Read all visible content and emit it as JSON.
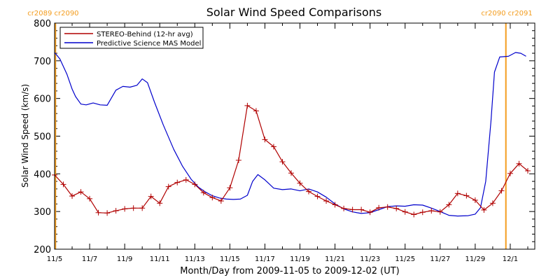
{
  "chart_data": {
    "type": "line",
    "title": "Solar Wind Speed Comparisons",
    "xlabel": "Month/Day from 2009-11-05 to 2009-12-02 (UT)",
    "ylabel": "Solar Wind Speed (km/s)",
    "xlim_days": [
      0,
      27.4
    ],
    "ylim": [
      200,
      800
    ],
    "x_ticks": [
      {
        "day": 0,
        "label": "11/5"
      },
      {
        "day": 2,
        "label": "11/7"
      },
      {
        "day": 4,
        "label": "11/9"
      },
      {
        "day": 6,
        "label": "11/11"
      },
      {
        "day": 8,
        "label": "11/13"
      },
      {
        "day": 10,
        "label": "11/15"
      },
      {
        "day": 12,
        "label": "11/17"
      },
      {
        "day": 14,
        "label": "11/19"
      },
      {
        "day": 16,
        "label": "11/21"
      },
      {
        "day": 18,
        "label": "11/23"
      },
      {
        "day": 20,
        "label": "11/25"
      },
      {
        "day": 22,
        "label": "11/27"
      },
      {
        "day": 24,
        "label": "11/29"
      },
      {
        "day": 26,
        "label": "12/1"
      }
    ],
    "y_ticks": [
      200,
      300,
      400,
      500,
      600,
      700,
      800
    ],
    "legend_position": "top-left",
    "carrington_markers": [
      {
        "day": 0.05,
        "label": "cr2089 cr2090",
        "label_side": "left"
      },
      {
        "day": 25.75,
        "label": "cr2090 cr2091",
        "label_side": "right"
      }
    ],
    "marker_color": "#f39c1d",
    "series": [
      {
        "name": "STEREO-Behind (12-hr avg)",
        "color": "#b00000",
        "marker": "+",
        "points": [
          [
            0.0,
            397
          ],
          [
            0.5,
            372
          ],
          [
            1.0,
            341
          ],
          [
            1.5,
            352
          ],
          [
            2.0,
            334
          ],
          [
            2.5,
            297
          ],
          [
            3.0,
            296
          ],
          [
            3.5,
            302
          ],
          [
            4.0,
            307
          ],
          [
            4.5,
            309
          ],
          [
            5.0,
            309
          ],
          [
            5.5,
            340
          ],
          [
            6.0,
            322
          ],
          [
            6.5,
            366
          ],
          [
            7.0,
            377
          ],
          [
            7.5,
            384
          ],
          [
            8.0,
            372
          ],
          [
            8.5,
            350
          ],
          [
            9.0,
            337
          ],
          [
            9.5,
            328
          ],
          [
            10.0,
            363
          ],
          [
            10.5,
            436
          ],
          [
            11.0,
            581
          ],
          [
            11.5,
            567
          ],
          [
            12.0,
            491
          ],
          [
            12.5,
            472
          ],
          [
            13.0,
            432
          ],
          [
            13.5,
            402
          ],
          [
            14.0,
            375
          ],
          [
            14.5,
            353
          ],
          [
            15.0,
            340
          ],
          [
            15.5,
            328
          ],
          [
            16.0,
            318
          ],
          [
            16.5,
            308
          ],
          [
            17.0,
            305
          ],
          [
            17.5,
            305
          ],
          [
            18.0,
            298
          ],
          [
            18.5,
            310
          ],
          [
            19.0,
            312
          ],
          [
            19.5,
            308
          ],
          [
            20.0,
            299
          ],
          [
            20.5,
            292
          ],
          [
            21.0,
            298
          ],
          [
            21.5,
            302
          ],
          [
            22.0,
            299
          ],
          [
            22.5,
            318
          ],
          [
            23.0,
            348
          ],
          [
            23.5,
            342
          ],
          [
            24.0,
            330
          ],
          [
            24.5,
            304
          ],
          [
            25.0,
            322
          ],
          [
            25.5,
            355
          ],
          [
            26.0,
            401
          ],
          [
            26.5,
            427
          ],
          [
            27.0,
            408
          ]
        ]
      },
      {
        "name": "Predictive Science MAS Model",
        "color": "#0000cc",
        "marker": "none",
        "points": [
          [
            0.0,
            722
          ],
          [
            0.3,
            705
          ],
          [
            0.7,
            665
          ],
          [
            1.0,
            625
          ],
          [
            1.2,
            605
          ],
          [
            1.5,
            585
          ],
          [
            1.8,
            583
          ],
          [
            2.2,
            588
          ],
          [
            2.6,
            583
          ],
          [
            3.0,
            582
          ],
          [
            3.5,
            622
          ],
          [
            3.9,
            632
          ],
          [
            4.3,
            630
          ],
          [
            4.7,
            635
          ],
          [
            5.0,
            652
          ],
          [
            5.3,
            642
          ],
          [
            5.7,
            590
          ],
          [
            6.2,
            530
          ],
          [
            6.8,
            465
          ],
          [
            7.3,
            420
          ],
          [
            7.8,
            385
          ],
          [
            8.2,
            365
          ],
          [
            8.6,
            352
          ],
          [
            9.0,
            342
          ],
          [
            9.4,
            336
          ],
          [
            9.8,
            333
          ],
          [
            10.2,
            332
          ],
          [
            10.6,
            333
          ],
          [
            11.0,
            343
          ],
          [
            11.3,
            380
          ],
          [
            11.6,
            398
          ],
          [
            12.0,
            384
          ],
          [
            12.5,
            362
          ],
          [
            13.0,
            358
          ],
          [
            13.5,
            360
          ],
          [
            14.0,
            355
          ],
          [
            14.5,
            360
          ],
          [
            15.0,
            352
          ],
          [
            15.5,
            338
          ],
          [
            16.0,
            320
          ],
          [
            16.5,
            307
          ],
          [
            17.0,
            299
          ],
          [
            17.5,
            295
          ],
          [
            18.0,
            297
          ],
          [
            18.5,
            305
          ],
          [
            19.0,
            313
          ],
          [
            19.5,
            315
          ],
          [
            20.0,
            314
          ],
          [
            20.5,
            318
          ],
          [
            21.0,
            317
          ],
          [
            21.5,
            309
          ],
          [
            22.0,
            300
          ],
          [
            22.5,
            290
          ],
          [
            23.0,
            288
          ],
          [
            23.6,
            289
          ],
          [
            24.0,
            293
          ],
          [
            24.3,
            310
          ],
          [
            24.6,
            380
          ],
          [
            24.9,
            540
          ],
          [
            25.1,
            670
          ],
          [
            25.4,
            710
          ],
          [
            25.9,
            712
          ],
          [
            26.3,
            722
          ],
          [
            26.6,
            720
          ],
          [
            26.9,
            712
          ]
        ]
      }
    ]
  }
}
